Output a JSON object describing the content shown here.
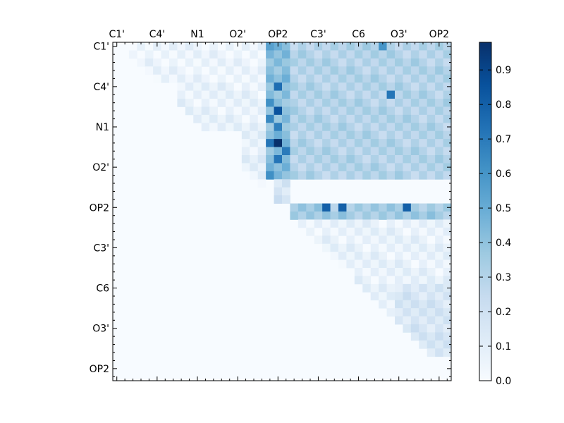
{
  "chart_data": {
    "type": "heatmap",
    "title": "",
    "xlabel": "",
    "ylabel": "",
    "colormap": "Blues",
    "colors": {
      "low": "#f7fbff",
      "high": "#08306b",
      "frame": "#000000",
      "background": "#ffffff"
    },
    "n": 42,
    "x_tick_labels": [
      "C1'",
      "C4'",
      "N1",
      "O2'",
      "OP2",
      "C3'",
      "C6",
      "O3'",
      "OP2"
    ],
    "y_tick_labels": [
      "C1'",
      "C4'",
      "N1",
      "O2'",
      "OP2",
      "C3'",
      "C6",
      "O3'",
      "OP2"
    ],
    "tick_indices": [
      0,
      5,
      10,
      15,
      20,
      25,
      30,
      35,
      40
    ],
    "x_axis_position": "top",
    "grid": false,
    "colorbar": {
      "position": "right",
      "vmin": 0.0,
      "vmax": 0.98,
      "tick_labels": [
        "0.0",
        "0.1",
        "0.2",
        "0.3",
        "0.4",
        "0.5",
        "0.6",
        "0.7",
        "0.8",
        "0.9"
      ]
    },
    "matrix_description": "upper-triangular contact matrix, rows/columns are atoms; lower triangle and diagonal are 0",
    "blocks": [
      {
        "rows": [
          0,
          4
        ],
        "cols": [
          2,
          18
        ],
        "value": 0.05
      },
      {
        "rows": [
          5,
          10
        ],
        "cols": [
          8,
          18
        ],
        "value": 0.07
      },
      {
        "rows": [
          11,
          18
        ],
        "cols": [
          16,
          18
        ],
        "value": 0.09
      },
      {
        "rows": [
          0,
          16
        ],
        "cols": [
          19,
          21
        ],
        "value": 0.42
      },
      {
        "rows": [
          0,
          16
        ],
        "cols": [
          22,
          41
        ],
        "value": 0.3
      },
      {
        "rows": [
          17,
          19
        ],
        "cols": [
          20,
          21
        ],
        "value": 0.18
      },
      {
        "rows": [
          20,
          21
        ],
        "cols": [
          22,
          41
        ],
        "value": 0.35
      },
      {
        "rows": [
          22,
          38
        ],
        "cols": [
          23,
          41
        ],
        "value": 0.07
      },
      {
        "rows": [
          30,
          38
        ],
        "cols": [
          35,
          41
        ],
        "value": 0.16
      }
    ],
    "strong_cells": [
      {
        "row": 0,
        "col": 19,
        "value": 0.55
      },
      {
        "row": 5,
        "col": 20,
        "value": 0.75
      },
      {
        "row": 7,
        "col": 19,
        "value": 0.62
      },
      {
        "row": 8,
        "col": 20,
        "value": 0.85
      },
      {
        "row": 9,
        "col": 19,
        "value": 0.65
      },
      {
        "row": 10,
        "col": 20,
        "value": 0.68
      },
      {
        "row": 12,
        "col": 20,
        "value": 0.98
      },
      {
        "row": 12,
        "col": 19,
        "value": 0.72
      },
      {
        "row": 13,
        "col": 21,
        "value": 0.7
      },
      {
        "row": 14,
        "col": 20,
        "value": 0.72
      },
      {
        "row": 16,
        "col": 19,
        "value": 0.62
      },
      {
        "row": 20,
        "col": 26,
        "value": 0.8
      },
      {
        "row": 20,
        "col": 28,
        "value": 0.8
      },
      {
        "row": 20,
        "col": 36,
        "value": 0.8
      },
      {
        "row": 6,
        "col": 34,
        "value": 0.72
      },
      {
        "row": 0,
        "col": 33,
        "value": 0.6
      }
    ]
  }
}
